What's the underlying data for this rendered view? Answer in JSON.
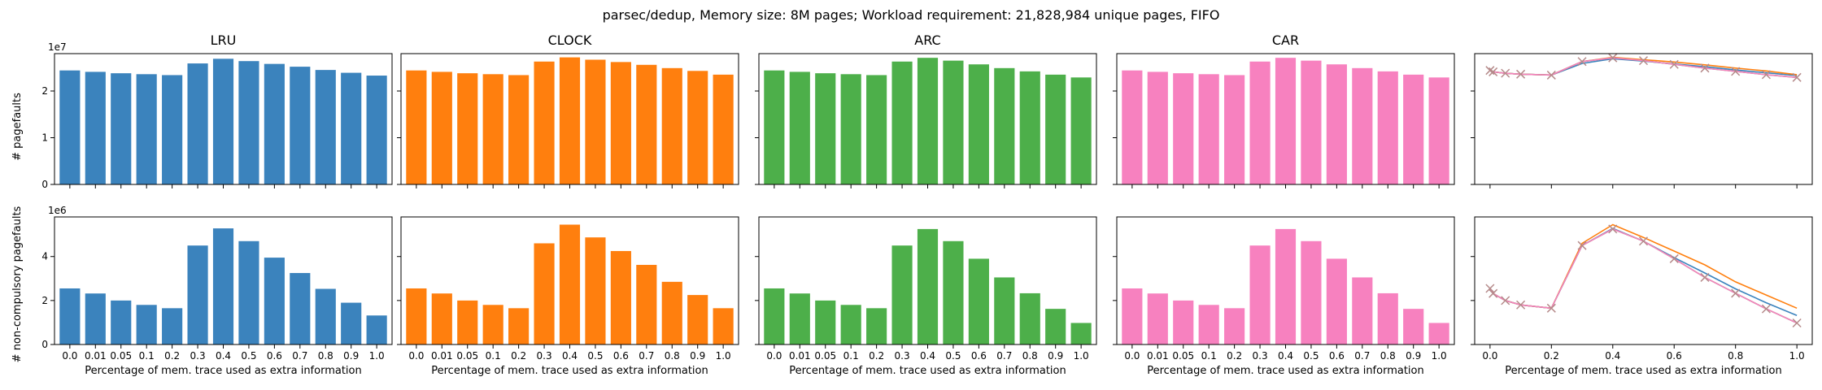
{
  "suptitle": "parsec/dedup, Memory size: 8M pages; Workload requirement: 21,828,984 unique pages, FIFO",
  "colors": {
    "LRU": "#3b83bd",
    "CLOCK": "#ff7f0e",
    "ARC": "#4daf4a",
    "CAR": "#f781bf",
    "axes": "#000000",
    "marker": "#b58a8a"
  },
  "row_labels": [
    "# pagefaults",
    "# non-compulsory pagefaults"
  ],
  "x_axis_label": "Percentage of mem. trace used as extra information",
  "chart_data": [
    {
      "type": "bar",
      "title": "LRU",
      "categories": [
        "0.0",
        "0.01",
        "0.05",
        "0.1",
        "0.2",
        "0.3",
        "0.4",
        "0.5",
        "0.6",
        "0.7",
        "0.8",
        "0.9",
        "1.0"
      ],
      "series": [
        {
          "name": "LRU",
          "values": [
            24400000,
            24100000,
            23800000,
            23600000,
            23400000,
            25900000,
            26900000,
            26400000,
            25800000,
            25200000,
            24500000,
            23900000,
            23300000
          ]
        }
      ],
      "ylim": [
        0,
        28000000
      ],
      "yticks": [
        0,
        1,
        2
      ],
      "scale_label": "1e7",
      "ylabel": "# pagefaults",
      "xlabel": ""
    },
    {
      "type": "bar",
      "title": "CLOCK",
      "categories": [
        "0.0",
        "0.01",
        "0.05",
        "0.1",
        "0.2",
        "0.3",
        "0.4",
        "0.5",
        "0.6",
        "0.7",
        "0.8",
        "0.9",
        "1.0"
      ],
      "series": [
        {
          "name": "CLOCK",
          "values": [
            24400000,
            24100000,
            23800000,
            23600000,
            23400000,
            26300000,
            27200000,
            26700000,
            26200000,
            25600000,
            24900000,
            24300000,
            23500000
          ]
        }
      ],
      "ylim": [
        0,
        28000000
      ],
      "yticks": [
        0,
        1,
        2
      ],
      "scale_label": "",
      "ylabel": "",
      "xlabel": ""
    },
    {
      "type": "bar",
      "title": "ARC",
      "categories": [
        "0.0",
        "0.01",
        "0.05",
        "0.1",
        "0.2",
        "0.3",
        "0.4",
        "0.5",
        "0.6",
        "0.7",
        "0.8",
        "0.9",
        "1.0"
      ],
      "series": [
        {
          "name": "ARC",
          "values": [
            24400000,
            24100000,
            23800000,
            23600000,
            23400000,
            26300000,
            27100000,
            26500000,
            25700000,
            24900000,
            24200000,
            23500000,
            22900000
          ]
        }
      ],
      "ylim": [
        0,
        28000000
      ],
      "yticks": [
        0,
        1,
        2
      ],
      "scale_label": "",
      "ylabel": "",
      "xlabel": ""
    },
    {
      "type": "bar",
      "title": "CAR",
      "categories": [
        "0.0",
        "0.01",
        "0.05",
        "0.1",
        "0.2",
        "0.3",
        "0.4",
        "0.5",
        "0.6",
        "0.7",
        "0.8",
        "0.9",
        "1.0"
      ],
      "series": [
        {
          "name": "CAR",
          "values": [
            24400000,
            24100000,
            23800000,
            23600000,
            23400000,
            26300000,
            27100000,
            26500000,
            25700000,
            24900000,
            24200000,
            23500000,
            22900000
          ]
        }
      ],
      "ylim": [
        0,
        28000000
      ],
      "yticks": [
        0,
        1,
        2
      ],
      "scale_label": "",
      "ylabel": "",
      "xlabel": ""
    },
    {
      "type": "line",
      "title": "",
      "x": [
        0.0,
        0.01,
        0.05,
        0.1,
        0.2,
        0.3,
        0.4,
        0.5,
        0.6,
        0.7,
        0.8,
        0.9,
        1.0
      ],
      "series": [
        {
          "name": "LRU",
          "values": [
            24400000,
            24100000,
            23800000,
            23600000,
            23400000,
            25900000,
            26900000,
            26400000,
            25800000,
            25200000,
            24500000,
            23900000,
            23300000
          ]
        },
        {
          "name": "CLOCK",
          "values": [
            24400000,
            24100000,
            23800000,
            23600000,
            23400000,
            26300000,
            27200000,
            26700000,
            26200000,
            25600000,
            24900000,
            24300000,
            23500000
          ]
        },
        {
          "name": "ARC",
          "values": [
            24400000,
            24100000,
            23800000,
            23600000,
            23400000,
            26300000,
            27100000,
            26500000,
            25700000,
            24900000,
            24200000,
            23500000,
            22900000
          ]
        },
        {
          "name": "CAR",
          "values": [
            24400000,
            24100000,
            23800000,
            23600000,
            23400000,
            26300000,
            27100000,
            26500000,
            25700000,
            24900000,
            24200000,
            23500000,
            22900000
          ]
        }
      ],
      "marker": "x",
      "ylim": [
        0,
        28000000
      ],
      "xlim": [
        -0.05,
        1.05
      ],
      "ylabel": "",
      "xlabel": ""
    },
    {
      "type": "bar",
      "title": "",
      "categories": [
        "0.0",
        "0.01",
        "0.05",
        "0.1",
        "0.2",
        "0.3",
        "0.4",
        "0.5",
        "0.6",
        "0.7",
        "0.8",
        "0.9",
        "1.0"
      ],
      "series": [
        {
          "name": "LRU",
          "values": [
            2550000,
            2320000,
            2000000,
            1800000,
            1650000,
            4500000,
            5280000,
            4700000,
            3950000,
            3250000,
            2530000,
            1900000,
            1320000
          ]
        }
      ],
      "ylim": [
        0,
        5800000
      ],
      "yticks": [
        0,
        2,
        4
      ],
      "scale_label": "1e6",
      "ylabel": "# non-compulsory pagefaults",
      "xlabel": "Percentage of mem. trace used as extra information"
    },
    {
      "type": "bar",
      "title": "",
      "categories": [
        "0.0",
        "0.01",
        "0.05",
        "0.1",
        "0.2",
        "0.3",
        "0.4",
        "0.5",
        "0.6",
        "0.7",
        "0.8",
        "0.9",
        "1.0"
      ],
      "series": [
        {
          "name": "CLOCK",
          "values": [
            2550000,
            2320000,
            2000000,
            1800000,
            1650000,
            4600000,
            5450000,
            4870000,
            4250000,
            3620000,
            2850000,
            2250000,
            1650000
          ]
        }
      ],
      "ylim": [
        0,
        5800000
      ],
      "yticks": [
        0,
        2,
        4
      ],
      "scale_label": "",
      "ylabel": "",
      "xlabel": "Percentage of mem. trace used as extra information"
    },
    {
      "type": "bar",
      "title": "",
      "categories": [
        "0.0",
        "0.01",
        "0.05",
        "0.1",
        "0.2",
        "0.3",
        "0.4",
        "0.5",
        "0.6",
        "0.7",
        "0.8",
        "0.9",
        "1.0"
      ],
      "series": [
        {
          "name": "ARC",
          "values": [
            2550000,
            2320000,
            2000000,
            1800000,
            1650000,
            4500000,
            5250000,
            4700000,
            3900000,
            3050000,
            2330000,
            1620000,
            980000
          ]
        }
      ],
      "ylim": [
        0,
        5800000
      ],
      "yticks": [
        0,
        2,
        4
      ],
      "scale_label": "",
      "ylabel": "",
      "xlabel": "Percentage of mem. trace used as extra information"
    },
    {
      "type": "bar",
      "title": "",
      "categories": [
        "0.0",
        "0.01",
        "0.05",
        "0.1",
        "0.2",
        "0.3",
        "0.4",
        "0.5",
        "0.6",
        "0.7",
        "0.8",
        "0.9",
        "1.0"
      ],
      "series": [
        {
          "name": "CAR",
          "values": [
            2550000,
            2320000,
            2000000,
            1800000,
            1650000,
            4500000,
            5250000,
            4700000,
            3900000,
            3050000,
            2330000,
            1620000,
            980000
          ]
        }
      ],
      "ylim": [
        0,
        5800000
      ],
      "yticks": [
        0,
        2,
        4
      ],
      "scale_label": "",
      "ylabel": "",
      "xlabel": "Percentage of mem. trace used as extra information"
    },
    {
      "type": "line",
      "title": "",
      "x": [
        0.0,
        0.01,
        0.05,
        0.1,
        0.2,
        0.3,
        0.4,
        0.5,
        0.6,
        0.7,
        0.8,
        0.9,
        1.0
      ],
      "series": [
        {
          "name": "LRU",
          "values": [
            2550000,
            2320000,
            2000000,
            1800000,
            1650000,
            4500000,
            5280000,
            4700000,
            3950000,
            3250000,
            2530000,
            1900000,
            1320000
          ]
        },
        {
          "name": "CLOCK",
          "values": [
            2550000,
            2320000,
            2000000,
            1800000,
            1650000,
            4600000,
            5450000,
            4870000,
            4250000,
            3620000,
            2850000,
            2250000,
            1650000
          ]
        },
        {
          "name": "ARC",
          "values": [
            2550000,
            2320000,
            2000000,
            1800000,
            1650000,
            4500000,
            5250000,
            4700000,
            3900000,
            3050000,
            2330000,
            1620000,
            980000
          ]
        },
        {
          "name": "CAR",
          "values": [
            2550000,
            2320000,
            2000000,
            1800000,
            1650000,
            4500000,
            5250000,
            4700000,
            3900000,
            3050000,
            2330000,
            1620000,
            980000
          ]
        }
      ],
      "marker": "x",
      "xticks": [
        "0.0",
        "0.2",
        "0.4",
        "0.6",
        "0.8",
        "1.0"
      ],
      "ylim": [
        0,
        5800000
      ],
      "xlim": [
        -0.05,
        1.05
      ],
      "ylabel": "",
      "xlabel": "Percentage of mem. trace used as extra information"
    }
  ]
}
